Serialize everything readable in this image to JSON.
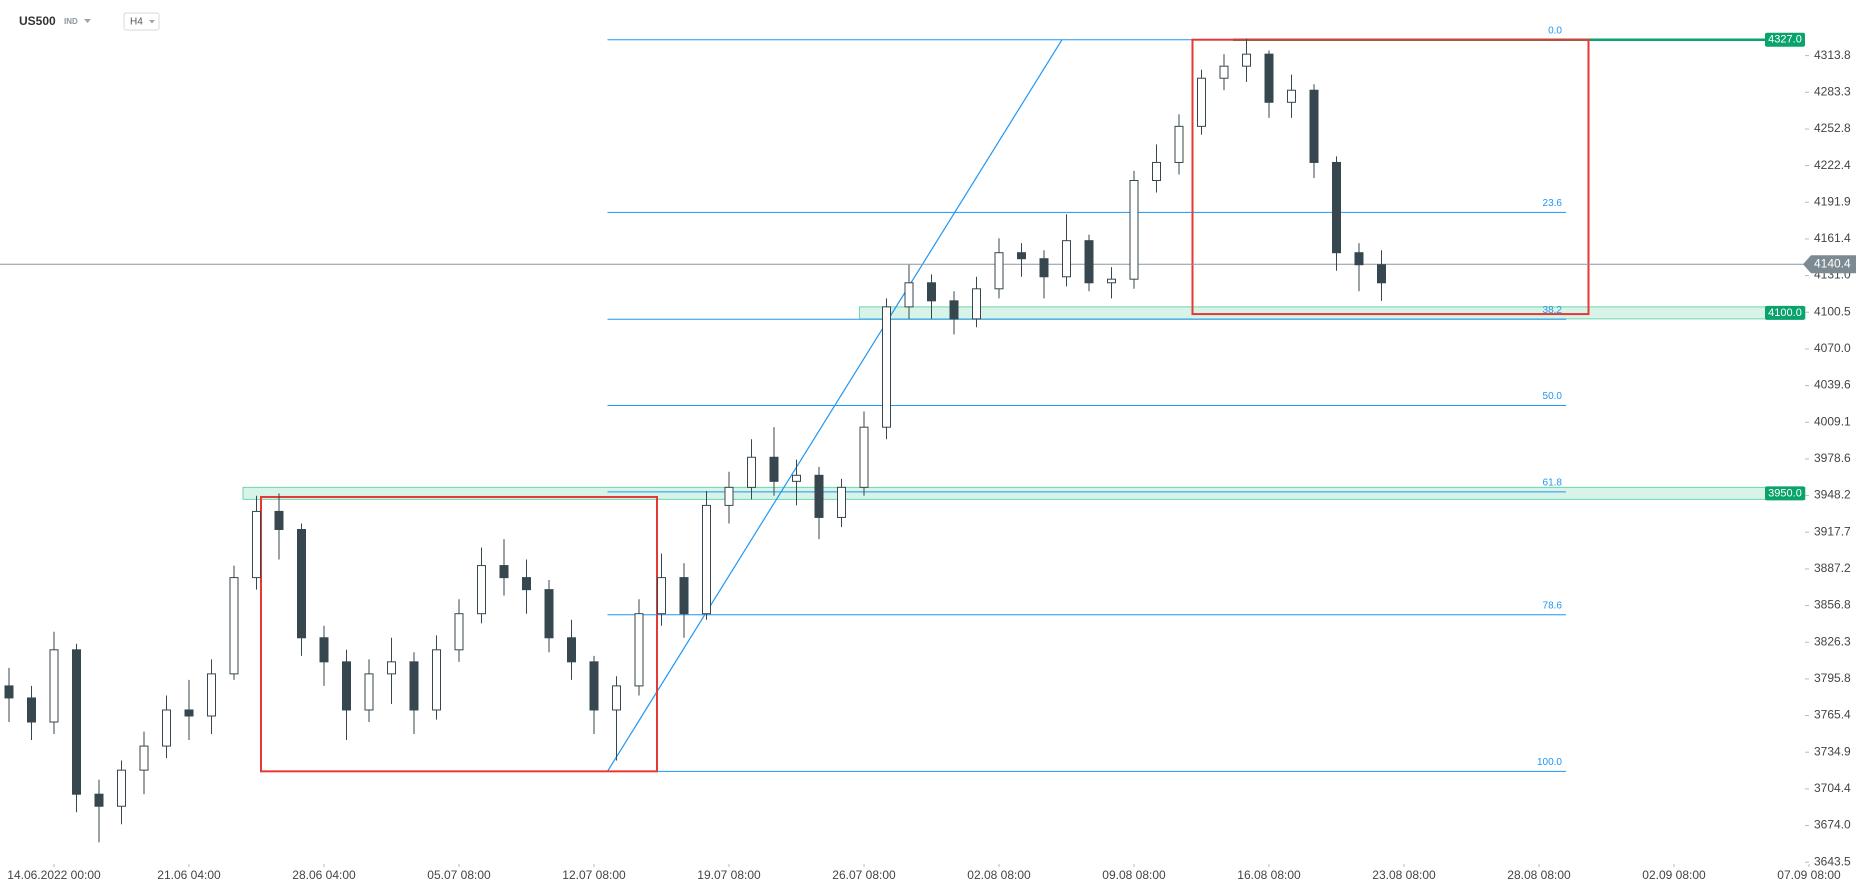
{
  "header": {
    "symbol": "US500",
    "market": "IND",
    "timeframe": "H4"
  },
  "chart_data": {
    "type": "candlestick",
    "x": [
      -10,
      -5,
      0,
      5,
      10,
      15,
      20,
      25,
      30,
      35,
      40,
      45,
      50,
      55,
      60,
      65,
      70,
      75,
      80,
      85,
      90,
      95,
      100,
      105,
      110,
      115,
      120,
      125,
      130,
      135,
      140,
      145,
      150,
      155,
      160,
      165,
      170,
      175,
      180,
      185,
      190,
      195,
      200,
      205,
      210,
      215,
      220,
      225,
      230,
      235,
      240,
      245,
      250,
      255,
      260,
      265,
      270,
      275,
      280,
      285,
      290,
      295
    ],
    "open": [
      3790,
      3780,
      3760,
      3820,
      3700,
      3690,
      3720,
      3740,
      3770,
      3765,
      3800,
      3880,
      3935,
      3920,
      3830,
      3810,
      3770,
      3800,
      3810,
      3770,
      3820,
      3850,
      3890,
      3880,
      3870,
      3830,
      3810,
      3770,
      3790,
      3850,
      3880,
      3850,
      3940,
      3955,
      3980,
      3960,
      3965,
      3930,
      3955,
      4005,
      4105,
      4125,
      4110,
      4095,
      4120,
      4150,
      4145,
      4130,
      4160,
      4125,
      4128,
      4210,
      4225,
      4255,
      4295,
      4305,
      4315,
      4275,
      4285,
      4225,
      4150,
      4140
    ],
    "high": [
      3805,
      3790,
      3835,
      3825,
      3712,
      3728,
      3752,
      3782,
      3795,
      3812,
      3890,
      3948,
      3950,
      3925,
      3840,
      3820,
      3812,
      3830,
      3818,
      3832,
      3862,
      3905,
      3912,
      3895,
      3878,
      3845,
      3815,
      3798,
      3862,
      3900,
      3892,
      3952,
      3968,
      3995,
      4005,
      3978,
      3972,
      3962,
      4018,
      4112,
      4140,
      4132,
      4118,
      4130,
      4162,
      4158,
      4152,
      4182,
      4165,
      4138,
      4218,
      4240,
      4265,
      4302,
      4315,
      4328,
      4318,
      4298,
      4290,
      4230,
      4158,
      4152
    ],
    "low": [
      3760,
      3745,
      3750,
      3685,
      3660,
      3675,
      3700,
      3730,
      3745,
      3750,
      3795,
      3870,
      3895,
      3815,
      3790,
      3745,
      3760,
      3775,
      3750,
      3762,
      3810,
      3842,
      3865,
      3850,
      3818,
      3795,
      3750,
      3728,
      3782,
      3840,
      3830,
      3845,
      3925,
      3945,
      3948,
      3940,
      3912,
      3922,
      3948,
      3995,
      4095,
      4095,
      4082,
      4088,
      4112,
      4130,
      4112,
      4122,
      4118,
      4112,
      4120,
      4200,
      4215,
      4248,
      4285,
      4292,
      4262,
      4262,
      4212,
      4135,
      4118,
      4110
    ],
    "close": [
      3780,
      3760,
      3820,
      3700,
      3690,
      3720,
      3740,
      3770,
      3765,
      3800,
      3880,
      3935,
      3920,
      3830,
      3810,
      3770,
      3800,
      3810,
      3770,
      3820,
      3850,
      3890,
      3880,
      3870,
      3830,
      3810,
      3770,
      3790,
      3850,
      3880,
      3850,
      3940,
      3955,
      3980,
      3960,
      3965,
      3930,
      3955,
      4005,
      4105,
      4125,
      4110,
      4095,
      4120,
      4150,
      4145,
      4130,
      4160,
      4125,
      4128,
      4210,
      4225,
      4255,
      4295,
      4305,
      4315,
      4275,
      4285,
      4225,
      4150,
      4140,
      4125
    ],
    "up_color": "#ffffff",
    "down_color": "#37474f",
    "xlim": [
      -12,
      390
    ],
    "xticks": [
      {
        "value": 0,
        "label": "14.06.2022 00:00"
      },
      {
        "value": 30,
        "label": "21.06 04:00"
      },
      {
        "value": 60,
        "label": "28.06 04:00"
      },
      {
        "value": 90,
        "label": "05.07 08:00"
      },
      {
        "value": 120,
        "label": "12.07 08:00"
      },
      {
        "value": 150,
        "label": "19.07 08:00"
      },
      {
        "value": 180,
        "label": "26.07 08:00"
      },
      {
        "value": 210,
        "label": "02.08 08:00"
      },
      {
        "value": 240,
        "label": "09.08 08:00"
      },
      {
        "value": 270,
        "label": "16.08 08:00"
      },
      {
        "value": 300,
        "label": "23.08 08:00"
      },
      {
        "value": 330,
        "label": "28.08 08:00"
      },
      {
        "value": 360,
        "label": "02.09 08:00"
      },
      {
        "value": 390,
        "label": "07.09 08:00"
      }
    ],
    "ylim": [
      3642,
      4360
    ],
    "yticks": [
      4313.8,
      4283.3,
      4252.8,
      4222.4,
      4191.9,
      4161.4,
      {
        "value": 4131,
        "label": "4131.0"
      },
      4100.5,
      {
        "value": 4070,
        "label": "4070.0"
      },
      4039.6,
      4009.1,
      3978.6,
      3948.2,
      3917.7,
      3887.2,
      3856.8,
      3826.3,
      3795.8,
      3765.4,
      3734.9,
      3704.4,
      {
        "value": 3674,
        "label": "3674.0"
      },
      3643.5
    ],
    "current_price": 4140.4,
    "levels": [
      {
        "price": {
          "value": 4327,
          "label": "4327.0"
        },
        "style": "line",
        "x_start": 262
      },
      {
        "price": {
          "value": 4100,
          "label": "4100.0"
        },
        "style": "zone",
        "x_start": 179
      },
      {
        "price": {
          "value": 3950,
          "label": "3950.0"
        },
        "style": "zone",
        "x_start": 42
      }
    ],
    "fib": {
      "high": 4327,
      "low": 3719,
      "x": [
        123,
        336
      ],
      "color": "#2196f3",
      "levels": [
        {
          "value": 0,
          "label": "0.0"
        },
        23.6,
        38.2,
        {
          "value": 50,
          "label": "50.0"
        },
        61.8,
        78.6,
        {
          "value": 100,
          "label": "100.0"
        }
      ]
    },
    "trend_line": {
      "x": [
        123,
        224
      ],
      "y": [
        3719,
        4327
      ]
    },
    "boxes": [
      {
        "x": [
          46,
          134
        ],
        "y": [
          3719,
          3947
        ]
      },
      {
        "x": [
          253,
          341
        ],
        "y": [
          4099,
          4327
        ]
      }
    ]
  }
}
